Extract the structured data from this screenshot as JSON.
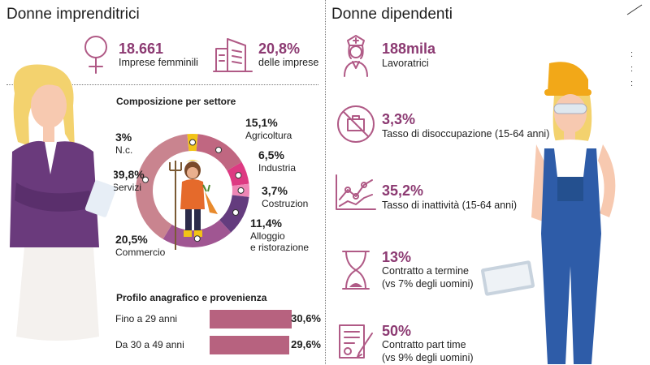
{
  "left": {
    "title": "Donne imprenditrici",
    "stat1": {
      "value": "18.661",
      "label": "Imprese femminili"
    },
    "stat2": {
      "value": "20,8%",
      "label": "delle imprese"
    },
    "composition_title": "Composizione per settore",
    "profile_title": "Profilo anagrafico e provenienza"
  },
  "right": {
    "title": "Donne dipendenti",
    "stats": [
      {
        "value": "188mila",
        "label": "Lavoratrici",
        "label2": ""
      },
      {
        "value": "3,3%",
        "label": "Tasso di disoccupazione (15-64 anni)",
        "label2": ""
      },
      {
        "value": "35,2%",
        "label": "Tasso di inattività (15-64 anni)",
        "label2": ""
      },
      {
        "value": "13%",
        "label": "Contratto a termine",
        "label2": "(vs 7% degli uomini)"
      },
      {
        "value": "50%",
        "label": "Contratto part time",
        "label2": "(vs 9% degli uomini)"
      }
    ]
  },
  "colors": {
    "accent": "#8c3a72",
    "bar": "#b7627f",
    "icon": "#b05a86"
  },
  "chart_data": [
    {
      "type": "pie",
      "title": "Composizione per settore",
      "categories": [
        "N.c.",
        "Agricoltura",
        "Industria",
        "Costruzione",
        "Alloggio e ristorazione",
        "Commercio",
        "Servizi"
      ],
      "values": [
        3,
        15.1,
        6.5,
        3.7,
        11.4,
        20.5,
        39.8
      ],
      "value_labels": [
        "3%",
        "15,1%",
        "6,5%",
        "3,7%",
        "11,4%",
        "20,5%",
        "39,8%"
      ],
      "label_lines": [
        [
          "N.c."
        ],
        [
          "Agricoltura"
        ],
        [
          "Industria"
        ],
        [
          "Costruzione"
        ],
        [
          "Alloggio",
          "e ristorazione"
        ],
        [
          "Commercio"
        ],
        [
          "Servizi"
        ]
      ],
      "colors": [
        "#f2c316",
        "#c06781",
        "#dd3a82",
        "#ee86b5",
        "#643c7e",
        "#a05692",
        "#c9848f"
      ]
    },
    {
      "type": "bar",
      "title": "Profilo anagrafico e provenienza",
      "categories": [
        "Fino a 29 anni",
        "Da 30 a 49 anni"
      ],
      "values": [
        30.6,
        29.6
      ],
      "value_labels": [
        "30,6%",
        "29,6%"
      ],
      "xlim": [
        0,
        100
      ]
    }
  ]
}
